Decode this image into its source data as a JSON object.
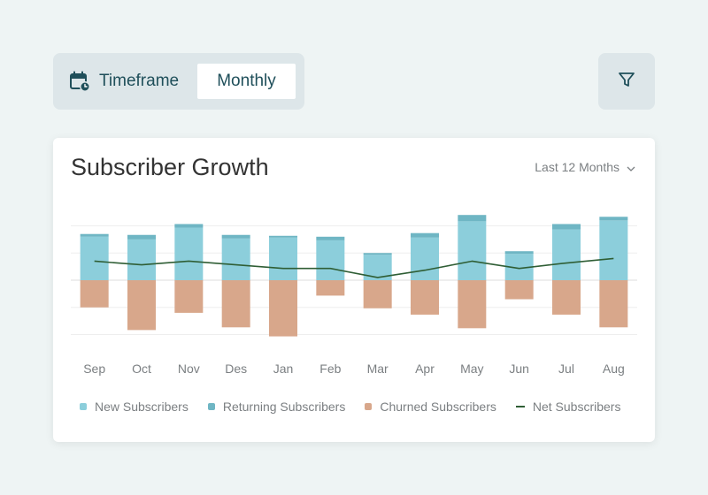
{
  "toolbar": {
    "timeframe_label": "Timeframe",
    "timeframe_value": "Monthly",
    "timeframe_icon": "calendar-clock-icon",
    "filter_icon": "filter-icon"
  },
  "card": {
    "title": "Subscriber Growth",
    "range_label": "Last 12 Months",
    "range_icon": "chevron-down-icon"
  },
  "colors": {
    "new": "#8ccedb",
    "returning": "#6fb6c4",
    "churned": "#d8a78b",
    "net": "#2f5e35",
    "grid": "#eeeeee"
  },
  "chart_data": {
    "type": "bar",
    "stacked": true,
    "title": "Subscriber Growth",
    "categories": [
      "Sep",
      "Oct",
      "Nov",
      "Des",
      "Jan",
      "Feb",
      "Mar",
      "Apr",
      "May",
      "Jun",
      "Jul",
      "Aug"
    ],
    "series": [
      {
        "name": "New Subscribers",
        "kind": "bar",
        "values": [
          48,
          45,
          58,
          46,
          47,
          44,
          28,
          47,
          65,
          29,
          56,
          66
        ]
      },
      {
        "name": "Returning Subscribers",
        "kind": "bar",
        "values": [
          3,
          5,
          4,
          4,
          2,
          4,
          2,
          5,
          7,
          3,
          6,
          4
        ]
      },
      {
        "name": "Churned Subscribers",
        "kind": "bar",
        "values": [
          -30,
          -55,
          -36,
          -52,
          -62,
          -17,
          -31,
          -38,
          -53,
          -21,
          -38,
          -52
        ]
      },
      {
        "name": "Net Subscribers",
        "kind": "line",
        "values": [
          21,
          17,
          21,
          17,
          13,
          13,
          3,
          11,
          21,
          13,
          19,
          24
        ]
      }
    ],
    "ylim": [
      -75,
      75
    ],
    "grid": true,
    "legend_position": "bottom"
  }
}
